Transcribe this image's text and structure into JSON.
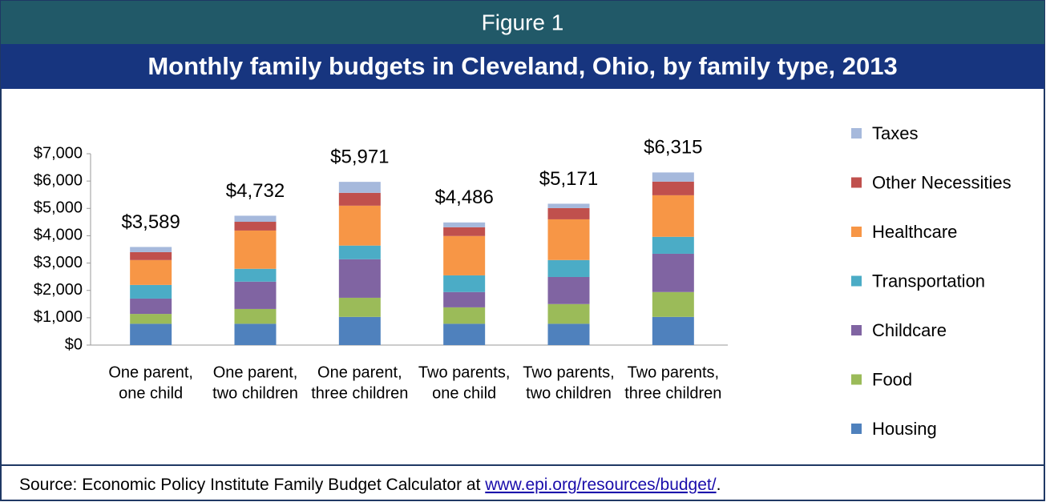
{
  "header": "Figure 1",
  "chart_data": {
    "type": "stacked_bar",
    "title": "Monthly family budgets in Cleveland, Ohio, by family type, 2013",
    "categories": [
      [
        "One parent,",
        "one child"
      ],
      [
        "One parent,",
        "two children"
      ],
      [
        "One parent,",
        "three children"
      ],
      [
        "Two parents,",
        "one child"
      ],
      [
        "Two parents,",
        "two children"
      ],
      [
        "Two parents,",
        "three children"
      ]
    ],
    "series": [
      {
        "name": "Housing",
        "color": "#4f81bd",
        "values": [
          780,
          780,
          1030,
          780,
          780,
          1030
        ]
      },
      {
        "name": "Food",
        "color": "#9bbb59",
        "values": [
          360,
          540,
          700,
          600,
          720,
          910
        ]
      },
      {
        "name": "Childcare",
        "color": "#8064a2",
        "values": [
          560,
          1000,
          1410,
          560,
          990,
          1400
        ]
      },
      {
        "name": "Transportation",
        "color": "#4bacc6",
        "values": [
          500,
          470,
          500,
          610,
          620,
          620
        ]
      },
      {
        "name": "Healthcare",
        "color": "#f79646",
        "values": [
          910,
          1400,
          1460,
          1440,
          1490,
          1520
        ]
      },
      {
        "name": "Other Necessities",
        "color": "#c0504d",
        "values": [
          290,
          320,
          470,
          320,
          410,
          500
        ]
      },
      {
        "name": "Taxes",
        "color": "#a6b9dc",
        "values": [
          189,
          222,
          401,
          176,
          161,
          335
        ]
      }
    ],
    "totals": [
      3589,
      4732,
      5971,
      4486,
      5171,
      6315
    ],
    "total_labels": [
      "$3,589",
      "$4,732",
      "$5,971",
      "$4,486",
      "$5,171",
      "$6,315"
    ],
    "ylim": [
      0,
      7000
    ],
    "yticks": [
      {
        "value": 0,
        "label": "$0"
      },
      {
        "value": 1000,
        "label": "$1,000"
      },
      {
        "value": 2000,
        "label": "$2,000"
      },
      {
        "value": 3000,
        "label": "$3,000"
      },
      {
        "value": 4000,
        "label": "$4,000"
      },
      {
        "value": 5000,
        "label": "$5,000"
      },
      {
        "value": 6000,
        "label": "$6,000"
      },
      {
        "value": 7000,
        "label": "$7,000"
      }
    ],
    "grid": false,
    "legend": "right"
  },
  "source": {
    "prefix": "Source: Economic Policy Institute Family Budget Calculator at ",
    "link": "www.epi.org/resources/budget/",
    "suffix": "."
  }
}
